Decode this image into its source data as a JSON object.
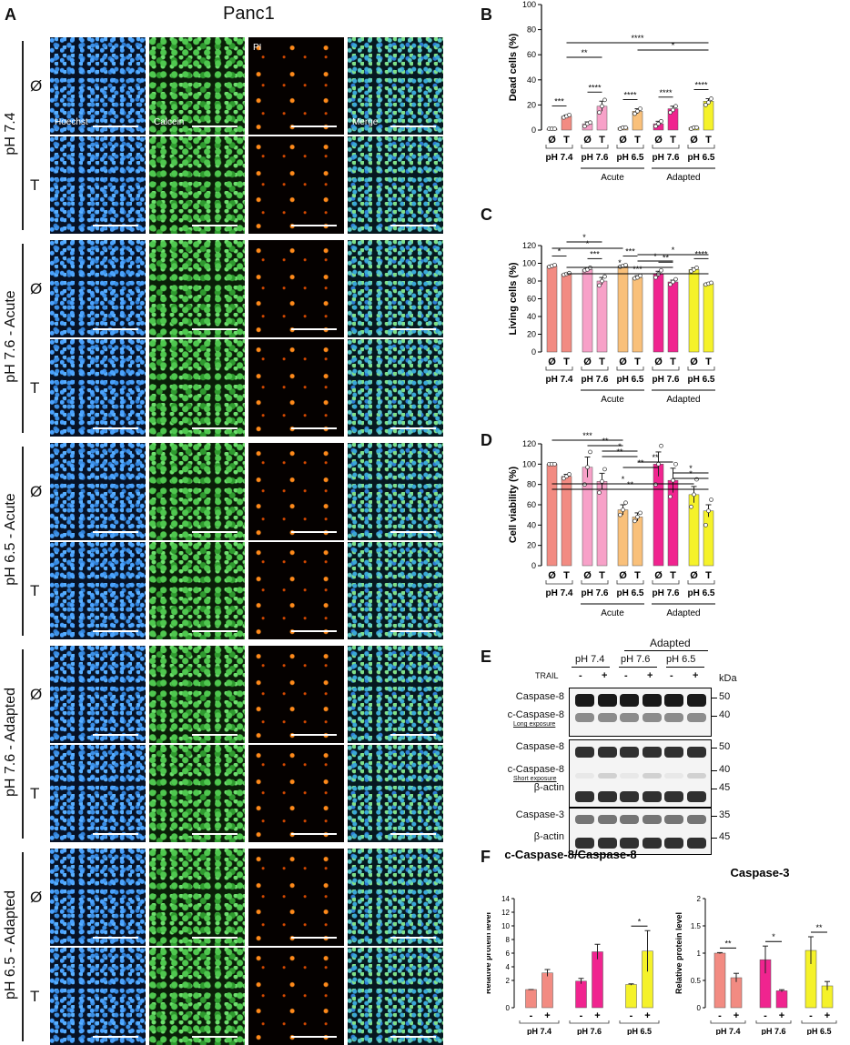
{
  "panels": {
    "A": "A",
    "B": "B",
    "C": "C",
    "D": "D",
    "E": "E",
    "F": "F"
  },
  "micro": {
    "title": "Panc1",
    "channels": [
      "Hoechst",
      "Calcein",
      "PI",
      "Merge"
    ],
    "groups": [
      "pH 7.4",
      "pH 7.6 - Acute",
      "pH 6.5 - Acute",
      "pH 7.6 - Adapted",
      "pH 6.5 - Adapted"
    ],
    "treat": [
      "Ø",
      "T"
    ]
  },
  "xgroups": {
    "treat": [
      "Ø",
      "T"
    ],
    "ph": [
      "pH 7.4",
      "pH 7.6",
      "pH 6.5",
      "pH 7.6",
      "pH 6.5"
    ],
    "acute": "Acute",
    "adapted": "Adapted"
  },
  "colors": {
    "pH 7.4": "#f28b82",
    "pH 7.6 acute": "#f7a1c8",
    "pH 6.5 acute": "#f9c07a",
    "pH 7.6 adapted": "#f0248f",
    "pH 6.5 adapted": "#f5f22a"
  },
  "chart_data": [
    {
      "type": "bar",
      "ylabel": "Dead cells (%)",
      "ylim": [
        0,
        100
      ],
      "yticks": [
        0,
        20,
        40,
        60,
        80,
        100
      ],
      "categories": [
        "Ø",
        "T",
        "Ø",
        "T",
        "Ø",
        "T",
        "Ø",
        "T",
        "Ø",
        "T"
      ],
      "values": [
        1,
        11,
        5,
        19,
        2,
        15,
        5,
        17,
        2,
        23
      ],
      "errors": [
        0.5,
        1,
        1.5,
        4,
        0.5,
        2,
        2,
        2,
        0.5,
        2
      ],
      "points": [
        [
          1,
          1,
          1
        ],
        [
          10,
          11,
          12
        ],
        [
          3,
          5,
          6
        ],
        [
          14,
          19,
          24
        ],
        [
          1,
          2,
          2
        ],
        [
          13,
          15,
          17
        ],
        [
          3,
          5,
          7
        ],
        [
          14,
          16,
          19
        ],
        [
          1,
          2,
          2
        ],
        [
          20,
          22,
          25
        ]
      ],
      "significance": [
        {
          "a": 0,
          "b": 1,
          "label": "***"
        },
        {
          "a": 2,
          "b": 3,
          "label": "****"
        },
        {
          "a": 4,
          "b": 5,
          "label": "****"
        },
        {
          "a": 6,
          "b": 7,
          "label": "****"
        },
        {
          "a": 8,
          "b": 9,
          "label": "****"
        },
        {
          "a": 1,
          "b": 3,
          "label": "**"
        },
        {
          "a": 5,
          "b": 9,
          "label": "*"
        },
        {
          "a": 1,
          "b": 9,
          "label": "****"
        }
      ]
    },
    {
      "type": "bar",
      "ylabel": "Living cells (%)",
      "ylim": [
        0,
        120
      ],
      "yticks": [
        0,
        20,
        40,
        60,
        80,
        100,
        120
      ],
      "categories": [
        "Ø",
        "T",
        "Ø",
        "T",
        "Ø",
        "T",
        "Ø",
        "T",
        "Ø",
        "T"
      ],
      "values": [
        97,
        88,
        93,
        80,
        97,
        84,
        88,
        79,
        93,
        77
      ],
      "errors": [
        1,
        1,
        2,
        4,
        1,
        2,
        3,
        2,
        2,
        1
      ],
      "points": [
        [
          96,
          97,
          98
        ],
        [
          87,
          88,
          89
        ],
        [
          92,
          93,
          95
        ],
        [
          75,
          80,
          85
        ],
        [
          96,
          97,
          98
        ],
        [
          83,
          84,
          86
        ],
        [
          84,
          88,
          92
        ],
        [
          76,
          79,
          82
        ],
        [
          91,
          93,
          95
        ],
        [
          76,
          77,
          78
        ]
      ],
      "significance": [
        {
          "a": 0,
          "b": 1,
          "label": "*"
        },
        {
          "a": 2,
          "b": 3,
          "label": "***"
        },
        {
          "a": 4,
          "b": 5,
          "label": "***"
        },
        {
          "a": 6,
          "b": 7,
          "label": "**"
        },
        {
          "a": 8,
          "b": 9,
          "label": "****"
        },
        {
          "a": 1,
          "b": 3,
          "label": "*"
        },
        {
          "a": 0,
          "b": 4,
          "label": "*"
        },
        {
          "a": 5,
          "b": 9,
          "label": "*"
        },
        {
          "a": 5,
          "b": 7,
          "label": "*"
        },
        {
          "a": 1,
          "b": 7,
          "label": "*"
        },
        {
          "a": 1,
          "b": 9,
          "label": "***"
        }
      ]
    },
    {
      "type": "bar",
      "ylabel": "Cell viability (%)",
      "ylim": [
        0,
        120
      ],
      "yticks": [
        0,
        20,
        40,
        60,
        80,
        100,
        120
      ],
      "categories": [
        "Ø",
        "T",
        "Ø",
        "T",
        "Ø",
        "T",
        "Ø",
        "T",
        "Ø",
        "T"
      ],
      "values": [
        100,
        88,
        97,
        83,
        55,
        48,
        100,
        84,
        70,
        54
      ],
      "errors": [
        0.5,
        2,
        10,
        8,
        5,
        4,
        12,
        12,
        8,
        6
      ],
      "points": [
        [
          100,
          100,
          100
        ],
        [
          86,
          88,
          90
        ],
        [
          80,
          97,
          112
        ],
        [
          72,
          83,
          95
        ],
        [
          50,
          55,
          62
        ],
        [
          44,
          48,
          52
        ],
        [
          80,
          100,
          118
        ],
        [
          68,
          84,
          100
        ],
        [
          58,
          70,
          85
        ],
        [
          40,
          54,
          65
        ]
      ],
      "significance": [
        {
          "a": 0,
          "b": 4,
          "label": "***"
        },
        {
          "a": 2,
          "b": 4,
          "label": "**"
        },
        {
          "a": 3,
          "b": 5,
          "label": "*"
        },
        {
          "a": 3,
          "b": 5,
          "label": "**"
        },
        {
          "a": 5,
          "b": 7,
          "label": "**"
        },
        {
          "a": 4,
          "b": 6,
          "label": "**"
        },
        {
          "a": 7,
          "b": 9,
          "label": "*"
        },
        {
          "a": 7,
          "b": 9,
          "label": "*"
        },
        {
          "a": 0,
          "b": 8,
          "label": "*"
        },
        {
          "a": 0,
          "b": 9,
          "label": "**"
        }
      ]
    },
    {
      "type": "bar",
      "title": "c-Caspase-8/Caspase-8",
      "ylabel": "Relative protein level",
      "yticks": [
        0,
        2,
        4,
        6,
        8,
        10,
        12,
        14
      ],
      "categories": [
        "-",
        "+",
        "-",
        "+",
        "-",
        "+"
      ],
      "groups": [
        "pH 7.4",
        "pH 7.6",
        "pH 6.5"
      ],
      "values": [
        1,
        3.1,
        1.9,
        6.2,
        1.4,
        6.3
      ],
      "errors": [
        0,
        0.5,
        0.4,
        1.1,
        0.1,
        3
      ],
      "significance": [
        {
          "a": 4,
          "b": 5,
          "label": "*"
        }
      ]
    },
    {
      "type": "bar",
      "title": "Caspase-3",
      "ylabel": "Relative protein level",
      "ylim": [
        0,
        2.0
      ],
      "yticks": [
        0,
        0.5,
        1.0,
        1.5,
        2.0
      ],
      "categories": [
        "-",
        "+",
        "-",
        "+",
        "-",
        "+"
      ],
      "groups": [
        "pH 7.4",
        "pH 7.6",
        "pH 6.5"
      ],
      "values": [
        1.0,
        0.55,
        0.88,
        0.31,
        1.05,
        0.4
      ],
      "errors": [
        0.01,
        0.08,
        0.25,
        0.02,
        0.25,
        0.08
      ],
      "significance": [
        {
          "a": 0,
          "b": 1,
          "label": "**"
        },
        {
          "a": 2,
          "b": 3,
          "label": "*"
        },
        {
          "a": 4,
          "b": 5,
          "label": "**"
        }
      ]
    }
  ],
  "blot": {
    "adapted": "Adapted",
    "treat": "TRAIL",
    "groups": [
      "pH 7.4",
      "pH 7.6",
      "pH 6.5"
    ],
    "signs": [
      "-",
      "+",
      "-",
      "+",
      "-",
      "+"
    ],
    "kda": "kDa",
    "rows": [
      {
        "label": "Caspase-8",
        "kda": "50"
      },
      {
        "label": "c-Caspase-8",
        "sub": "Long exposure",
        "kda": "40"
      },
      {
        "label": "Caspase-8",
        "kda": "50"
      },
      {
        "label": "c-Caspase-8",
        "sub": "Short exposure",
        "kda": "40"
      },
      {
        "label": "β-actin",
        "kda": "45"
      },
      {
        "label": "Caspase-3",
        "kda": "35"
      },
      {
        "label": "β-actin",
        "kda": "45"
      }
    ]
  }
}
